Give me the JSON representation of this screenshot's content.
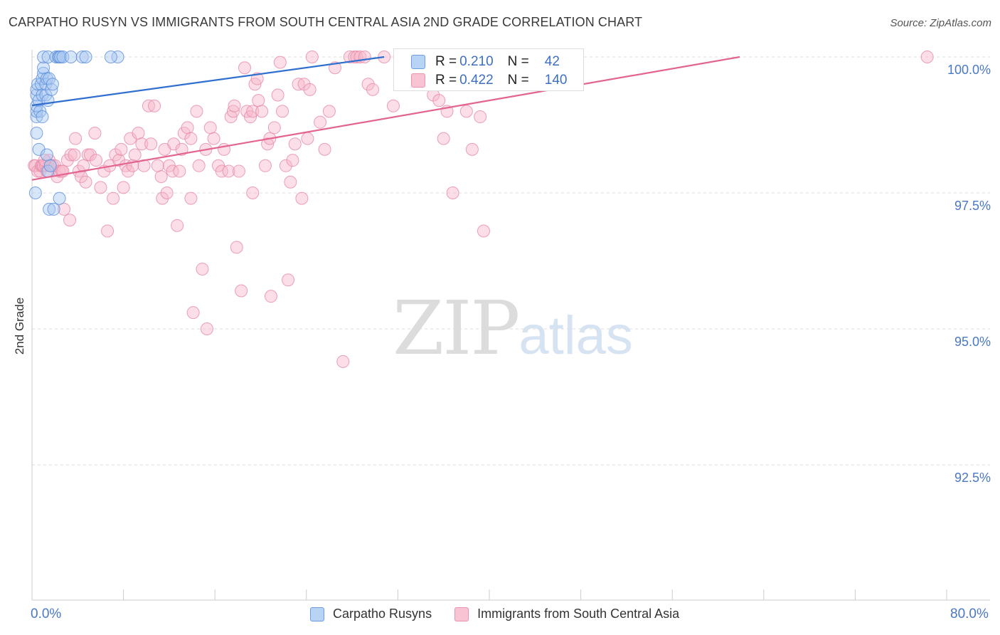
{
  "header": {
    "title": "CARPATHO RUSYN VS IMMIGRANTS FROM SOUTH CENTRAL ASIA 2ND GRADE CORRELATION CHART",
    "source": "Source: ZipAtlas.com"
  },
  "watermark": {
    "zip": "ZIP",
    "atlas": "atlas"
  },
  "colors": {
    "blue_fill": "#a9c8f2",
    "blue_stroke": "#5b8fdb",
    "blue_line": "#2f6fcf",
    "pink_fill": "#f6b6c9",
    "pink_stroke": "#e68aa8",
    "pink_line": "#e2648f",
    "grid": "#dddddd",
    "tick_label": "#4a78c5"
  },
  "stats": {
    "rows": [
      {
        "r_label": "R =",
        "r_value": "0.210",
        "n_label": "N =",
        "n_value": "42"
      },
      {
        "r_label": "R =",
        "r_value": "0.422",
        "n_label": "N =",
        "n_value": "140"
      }
    ]
  },
  "legend": {
    "items": [
      {
        "label": "Carpatho Rusyns"
      },
      {
        "label": "Immigrants from South Central Asia"
      }
    ]
  },
  "chart_data": {
    "type": "scatter",
    "title": "CARPATHO RUSYN VS IMMIGRANTS FROM SOUTH CENTRAL ASIA 2ND GRADE CORRELATION CHART",
    "xlabel": "",
    "ylabel": "2nd Grade",
    "xlim": [
      0,
      80
    ],
    "ylim": [
      89.8,
      100.2
    ],
    "x_tick_labels": {
      "left": "0.0%",
      "right": "80.0%"
    },
    "y_ticks": [
      {
        "value": 100.0,
        "label": "100.0%"
      },
      {
        "value": 97.5,
        "label": "97.5%"
      },
      {
        "value": 95.0,
        "label": "95.0%"
      },
      {
        "value": 92.5,
        "label": "92.5%"
      }
    ],
    "series": [
      {
        "name": "Carpatho Rusyns",
        "r": 0.21,
        "n": 42,
        "trend": {
          "x": [
            0.0,
            30.8
          ],
          "y": [
            99.11,
            100.0
          ]
        },
        "points": [
          [
            0.3,
            97.5
          ],
          [
            0.4,
            98.6
          ],
          [
            0.4,
            98.9
          ],
          [
            0.4,
            99.0
          ],
          [
            0.4,
            99.1
          ],
          [
            0.4,
            99.3
          ],
          [
            0.4,
            99.4
          ],
          [
            0.5,
            99.5
          ],
          [
            0.6,
            98.3
          ],
          [
            0.6,
            99.2
          ],
          [
            0.7,
            99.0
          ],
          [
            0.8,
            99.5
          ],
          [
            0.9,
            98.9
          ],
          [
            0.9,
            99.3
          ],
          [
            0.9,
            99.6
          ],
          [
            1.0,
            99.7
          ],
          [
            1.0,
            99.8
          ],
          [
            1.0,
            100.0
          ],
          [
            1.2,
            99.3
          ],
          [
            1.2,
            99.5
          ],
          [
            1.3,
            99.6
          ],
          [
            1.3,
            98.2
          ],
          [
            1.4,
            97.9
          ],
          [
            1.4,
            99.2
          ],
          [
            1.4,
            100.0
          ],
          [
            1.5,
            99.6
          ],
          [
            1.6,
            98.0
          ],
          [
            1.7,
            99.4
          ],
          [
            1.5,
            97.2
          ],
          [
            1.8,
            99.5
          ],
          [
            1.9,
            97.2
          ],
          [
            2.1,
            100.0
          ],
          [
            2.3,
            100.0
          ],
          [
            2.4,
            100.0
          ],
          [
            2.5,
            100.0
          ],
          [
            2.7,
            100.0
          ],
          [
            2.4,
            97.4
          ],
          [
            3.4,
            100.0
          ],
          [
            4.4,
            100.0
          ],
          [
            4.7,
            100.0
          ],
          [
            7.5,
            100.0
          ],
          [
            6.9,
            100.0
          ]
        ]
      },
      {
        "name": "Immigrants from South Central Asia",
        "r": 0.422,
        "n": 140,
        "trend": {
          "x": [
            0.0,
            61.9
          ],
          "y": [
            97.74,
            100.0
          ]
        },
        "points": [
          [
            0.2,
            98.0
          ],
          [
            0.3,
            98.0
          ],
          [
            0.5,
            97.9
          ],
          [
            0.7,
            97.9
          ],
          [
            0.8,
            98.0
          ],
          [
            0.9,
            98.0
          ],
          [
            1.0,
            98.0
          ],
          [
            1.2,
            98.0
          ],
          [
            1.3,
            97.9
          ],
          [
            1.5,
            98.1
          ],
          [
            1.6,
            98.0
          ],
          [
            1.8,
            98.0
          ],
          [
            2.0,
            98.0
          ],
          [
            2.2,
            97.8
          ],
          [
            2.4,
            97.9
          ],
          [
            2.6,
            97.9
          ],
          [
            2.8,
            97.2
          ],
          [
            3.1,
            98.1
          ],
          [
            3.3,
            97.0
          ],
          [
            3.4,
            98.2
          ],
          [
            3.7,
            98.2
          ],
          [
            3.8,
            98.5
          ],
          [
            4.1,
            97.9
          ],
          [
            4.3,
            97.8
          ],
          [
            4.5,
            98.0
          ],
          [
            4.7,
            97.7
          ],
          [
            4.9,
            98.2
          ],
          [
            5.1,
            98.2
          ],
          [
            5.5,
            98.6
          ],
          [
            5.6,
            98.1
          ],
          [
            6.0,
            97.6
          ],
          [
            6.3,
            97.9
          ],
          [
            6.6,
            96.8
          ],
          [
            6.8,
            98.0
          ],
          [
            7.1,
            97.4
          ],
          [
            7.3,
            98.2
          ],
          [
            7.6,
            98.1
          ],
          [
            7.8,
            98.3
          ],
          [
            8.0,
            97.6
          ],
          [
            8.2,
            98.0
          ],
          [
            8.4,
            97.9
          ],
          [
            8.6,
            98.5
          ],
          [
            8.8,
            98.0
          ],
          [
            9.0,
            98.2
          ],
          [
            9.3,
            98.6
          ],
          [
            9.6,
            98.4
          ],
          [
            9.8,
            98.0
          ],
          [
            10.2,
            99.1
          ],
          [
            10.4,
            98.4
          ],
          [
            10.7,
            99.1
          ],
          [
            11.0,
            98.0
          ],
          [
            11.3,
            97.8
          ],
          [
            11.4,
            97.4
          ],
          [
            11.6,
            98.3
          ],
          [
            11.8,
            97.5
          ],
          [
            12.0,
            98.0
          ],
          [
            12.3,
            97.9
          ],
          [
            12.4,
            98.4
          ],
          [
            12.7,
            96.9
          ],
          [
            12.9,
            97.9
          ],
          [
            13.1,
            98.3
          ],
          [
            13.3,
            98.6
          ],
          [
            13.6,
            98.7
          ],
          [
            13.9,
            98.5
          ],
          [
            13.9,
            97.4
          ],
          [
            14.1,
            95.3
          ],
          [
            14.4,
            99.0
          ],
          [
            14.6,
            98.0
          ],
          [
            14.9,
            96.1
          ],
          [
            15.2,
            98.3
          ],
          [
            15.3,
            95.0
          ],
          [
            15.6,
            98.7
          ],
          [
            15.9,
            98.5
          ],
          [
            16.3,
            98.0
          ],
          [
            16.6,
            97.9
          ],
          [
            16.8,
            98.3
          ],
          [
            17.2,
            97.9
          ],
          [
            17.4,
            98.9
          ],
          [
            17.6,
            99.0
          ],
          [
            17.7,
            99.1
          ],
          [
            17.9,
            96.5
          ],
          [
            18.1,
            97.9
          ],
          [
            18.3,
            95.7
          ],
          [
            18.6,
            99.8
          ],
          [
            18.8,
            99.0
          ],
          [
            19.1,
            98.9
          ],
          [
            19.3,
            99.0
          ],
          [
            19.3,
            97.5
          ],
          [
            19.5,
            99.5
          ],
          [
            19.7,
            99.6
          ],
          [
            19.8,
            99.2
          ],
          [
            20.1,
            99.0
          ],
          [
            20.4,
            98.0
          ],
          [
            20.6,
            98.4
          ],
          [
            20.8,
            98.5
          ],
          [
            20.9,
            95.6
          ],
          [
            21.2,
            98.7
          ],
          [
            21.5,
            99.3
          ],
          [
            21.7,
            99.9
          ],
          [
            21.9,
            99.0
          ],
          [
            22.2,
            98.0
          ],
          [
            22.4,
            95.9
          ],
          [
            22.6,
            97.7
          ],
          [
            22.8,
            98.1
          ],
          [
            23.0,
            98.4
          ],
          [
            23.3,
            99.5
          ],
          [
            23.6,
            97.4
          ],
          [
            23.8,
            99.5
          ],
          [
            24.1,
            98.5
          ],
          [
            24.3,
            99.4
          ],
          [
            24.5,
            100.0
          ],
          [
            25.2,
            98.8
          ],
          [
            25.6,
            98.3
          ],
          [
            26.0,
            99.0
          ],
          [
            26.5,
            99.8
          ],
          [
            27.2,
            94.4
          ],
          [
            27.8,
            100.0
          ],
          [
            28.2,
            100.0
          ],
          [
            28.4,
            100.0
          ],
          [
            28.7,
            100.0
          ],
          [
            29.1,
            100.0
          ],
          [
            29.4,
            99.5
          ],
          [
            29.8,
            99.4
          ],
          [
            30.8,
            100.0
          ],
          [
            31.6,
            99.1
          ],
          [
            33.0,
            99.5
          ],
          [
            34.2,
            99.5
          ],
          [
            35.1,
            99.3
          ],
          [
            35.6,
            99.2
          ],
          [
            36.0,
            98.5
          ],
          [
            36.3,
            99.0
          ],
          [
            36.8,
            97.5
          ],
          [
            38.0,
            99.0
          ],
          [
            38.5,
            98.3
          ],
          [
            39.2,
            98.9
          ],
          [
            39.5,
            96.8
          ],
          [
            41.5,
            100.0
          ],
          [
            78.3,
            100.0
          ],
          [
            1.1,
            98.1
          ],
          [
            2.7,
            97.9
          ]
        ]
      }
    ]
  }
}
